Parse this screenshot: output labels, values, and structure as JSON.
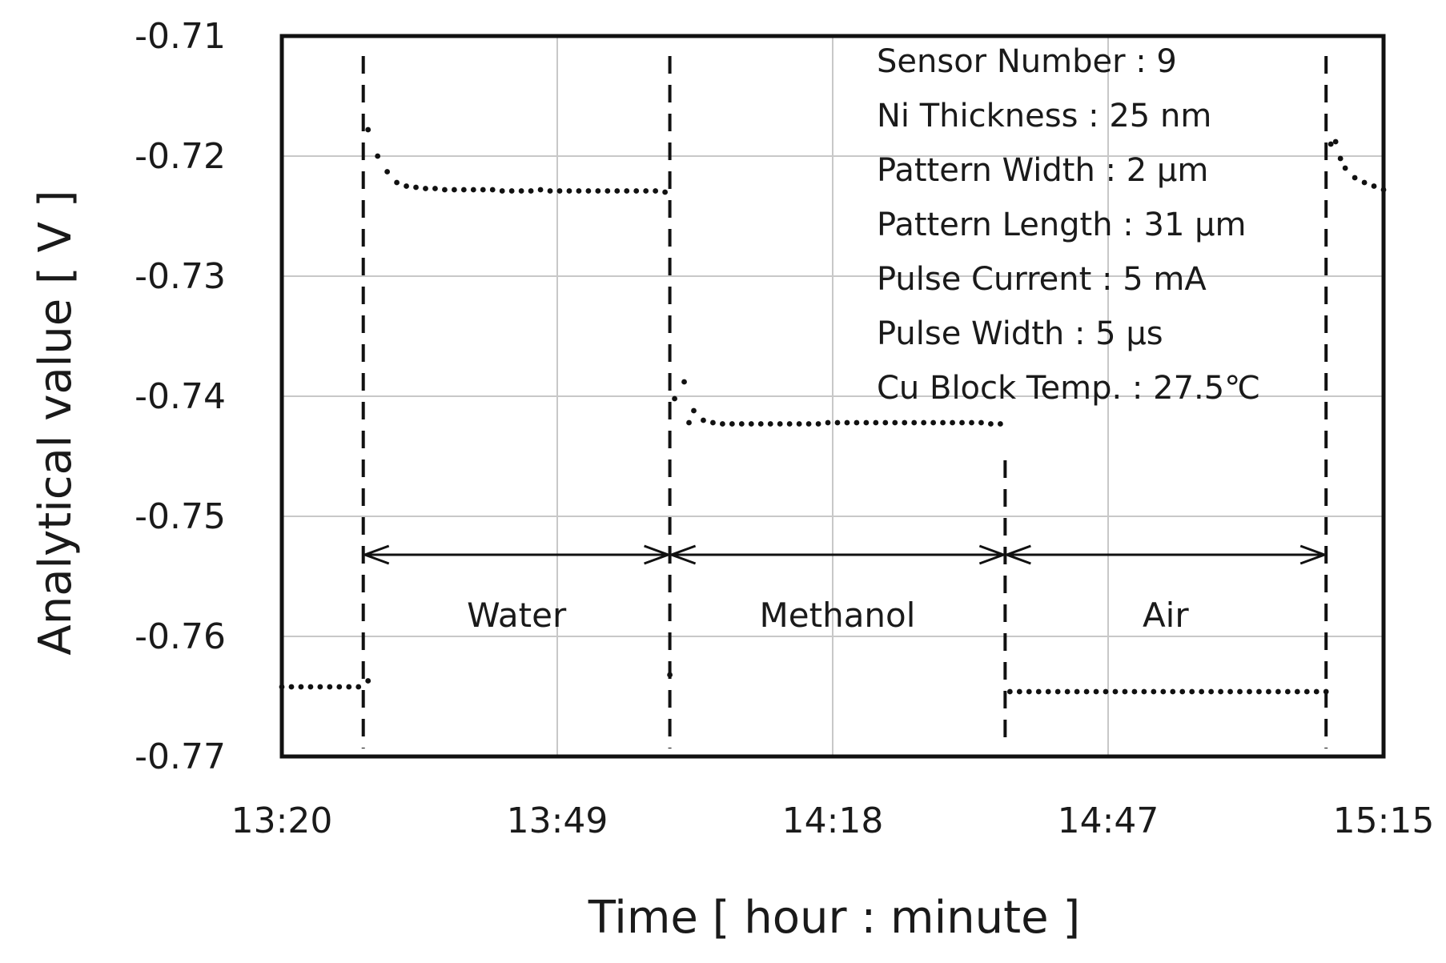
{
  "chart_data": {
    "type": "line",
    "xlabel": "Time [ hour : minute ]",
    "ylabel": "Analytical value [ V ]",
    "x_ticks": [
      "13:20",
      "13:49",
      "14:18",
      "14:47",
      "15:15"
    ],
    "x_range_minutes": [
      800,
      915
    ],
    "ylim": [
      -0.77,
      -0.71
    ],
    "y_ticks": [
      -0.71,
      -0.72,
      -0.73,
      -0.74,
      -0.75,
      -0.76,
      -0.77
    ],
    "y_tick_labels": [
      "-0.71",
      "-0.72",
      "-0.73",
      "-0.74",
      "-0.75",
      "-0.76",
      "-0.77"
    ],
    "grid": true,
    "info_box": [
      "Sensor Number : 9",
      "Ni Thickness : 25 nm",
      "Pattern Width : 2 µm",
      "Pattern Length : 31 µm",
      "Pulse Current : 5 mA",
      "Pulse Width : 5 µs",
      "Cu Block Temp. : 27.5℃"
    ],
    "transitions_time": [
      "13:28",
      "13:60",
      "14:35",
      "15:09"
    ],
    "transitions_minutes": [
      808.5,
      840.5,
      875.5,
      909
    ],
    "regions": [
      {
        "label": "Water",
        "start_min": 808.5,
        "end_min": 840.5
      },
      {
        "label": "Methanol",
        "start_min": 840.5,
        "end_min": 875.5
      },
      {
        "label": "Air",
        "start_min": 875.5,
        "end_min": 909
      }
    ],
    "series": [
      {
        "points": [
          [
            800,
            -0.7642
          ],
          [
            801,
            -0.7642
          ],
          [
            802,
            -0.7642
          ],
          [
            803,
            -0.7642
          ],
          [
            804,
            -0.7642
          ],
          [
            805,
            -0.7642
          ],
          [
            806,
            -0.7642
          ],
          [
            807,
            -0.7642
          ],
          [
            808,
            -0.7642
          ],
          [
            809,
            -0.7637
          ],
          [
            809,
            -0.7178
          ],
          [
            810,
            -0.72
          ],
          [
            811,
            -0.7213
          ],
          [
            812,
            -0.7222
          ],
          [
            813,
            -0.7225
          ],
          [
            814,
            -0.7226
          ],
          [
            815,
            -0.7227
          ],
          [
            816,
            -0.7227
          ],
          [
            817,
            -0.7228
          ],
          [
            818,
            -0.7228
          ],
          [
            819,
            -0.7228
          ],
          [
            820,
            -0.7228
          ],
          [
            821,
            -0.7228
          ],
          [
            822,
            -0.7228
          ],
          [
            823,
            -0.7229
          ],
          [
            824,
            -0.7229
          ],
          [
            825,
            -0.7229
          ],
          [
            826,
            -0.7229
          ],
          [
            827,
            -0.7228
          ],
          [
            828,
            -0.7229
          ],
          [
            829,
            -0.7229
          ],
          [
            830,
            -0.7229
          ],
          [
            831,
            -0.7229
          ],
          [
            832,
            -0.7229
          ],
          [
            833,
            -0.7229
          ],
          [
            834,
            -0.7229
          ],
          [
            835,
            -0.7229
          ],
          [
            836,
            -0.7229
          ],
          [
            837,
            -0.7229
          ],
          [
            838,
            -0.7229
          ],
          [
            839,
            -0.7229
          ],
          [
            840,
            -0.723
          ],
          [
            840.5,
            -0.7632
          ],
          [
            841,
            -0.7402
          ],
          [
            842,
            -0.7388
          ],
          [
            842.5,
            -0.7422
          ],
          [
            843,
            -0.7412
          ],
          [
            844,
            -0.742
          ],
          [
            845,
            -0.7422
          ],
          [
            846,
            -0.7423
          ],
          [
            847,
            -0.7423
          ],
          [
            848,
            -0.7423
          ],
          [
            849,
            -0.7423
          ],
          [
            850,
            -0.7423
          ],
          [
            851,
            -0.7423
          ],
          [
            852,
            -0.7423
          ],
          [
            853,
            -0.7423
          ],
          [
            854,
            -0.7423
          ],
          [
            855,
            -0.7423
          ],
          [
            856,
            -0.7423
          ],
          [
            857,
            -0.7422
          ],
          [
            858,
            -0.7422
          ],
          [
            859,
            -0.7422
          ],
          [
            860,
            -0.7422
          ],
          [
            861,
            -0.7422
          ],
          [
            862,
            -0.7422
          ],
          [
            863,
            -0.7422
          ],
          [
            864,
            -0.7422
          ],
          [
            865,
            -0.7422
          ],
          [
            866,
            -0.7422
          ],
          [
            867,
            -0.7422
          ],
          [
            868,
            -0.7422
          ],
          [
            869,
            -0.7422
          ],
          [
            870,
            -0.7422
          ],
          [
            871,
            -0.7422
          ],
          [
            872,
            -0.7422
          ],
          [
            873,
            -0.7422
          ],
          [
            874,
            -0.7423
          ],
          [
            875,
            -0.7423
          ],
          [
            876,
            -0.7646
          ],
          [
            877,
            -0.7646
          ],
          [
            878,
            -0.7646
          ],
          [
            879,
            -0.7646
          ],
          [
            880,
            -0.7646
          ],
          [
            881,
            -0.7646
          ],
          [
            882,
            -0.7646
          ],
          [
            883,
            -0.7646
          ],
          [
            884,
            -0.7646
          ],
          [
            885,
            -0.7646
          ],
          [
            886,
            -0.7646
          ],
          [
            887,
            -0.7646
          ],
          [
            888,
            -0.7646
          ],
          [
            889,
            -0.7646
          ],
          [
            890,
            -0.7646
          ],
          [
            891,
            -0.7646
          ],
          [
            892,
            -0.7646
          ],
          [
            893,
            -0.7646
          ],
          [
            894,
            -0.7646
          ],
          [
            895,
            -0.7646
          ],
          [
            896,
            -0.7646
          ],
          [
            897,
            -0.7646
          ],
          [
            898,
            -0.7646
          ],
          [
            899,
            -0.7646
          ],
          [
            900,
            -0.7646
          ],
          [
            901,
            -0.7646
          ],
          [
            902,
            -0.7646
          ],
          [
            903,
            -0.7646
          ],
          [
            904,
            -0.7646
          ],
          [
            905,
            -0.7646
          ],
          [
            906,
            -0.7646
          ],
          [
            907,
            -0.7646
          ],
          [
            908,
            -0.7646
          ],
          [
            909,
            -0.7646
          ],
          [
            909.5,
            -0.719
          ],
          [
            910,
            -0.7188
          ],
          [
            910.5,
            -0.7202
          ],
          [
            911,
            -0.721
          ],
          [
            912,
            -0.7218
          ],
          [
            913,
            -0.7222
          ],
          [
            914,
            -0.7225
          ],
          [
            915,
            -0.7228
          ]
        ]
      }
    ]
  },
  "colors": {
    "frame": "#111111",
    "grid": "#c8c8c8",
    "data": "#111111",
    "text": "#1a1a1a"
  }
}
